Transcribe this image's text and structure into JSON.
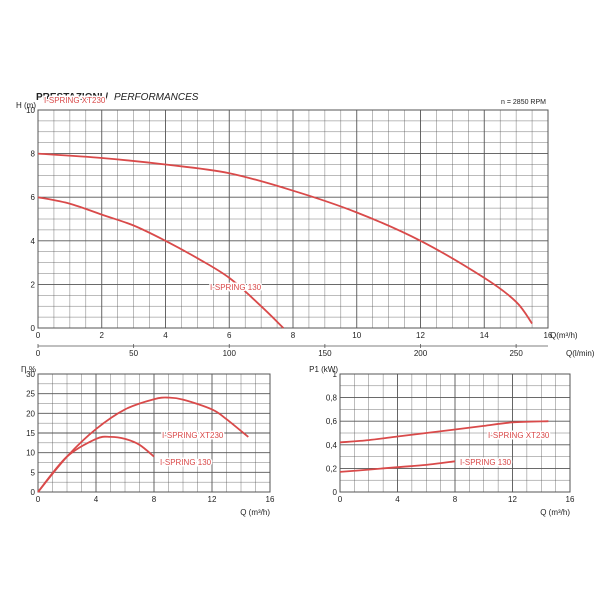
{
  "header": {
    "title_it": "PRESTAZIONI /",
    "title_en": "PERFORMANCES",
    "speed_note": "n = 2850 RPM"
  },
  "colors": {
    "curve": "#d94a4a",
    "grid": "#555555",
    "text": "#222222"
  },
  "chart_data": [
    {
      "type": "line",
      "id": "head",
      "ylabel": "H (m)",
      "xlabel": "Q(m³/h)",
      "xlabel2": "Q(l/min)",
      "xlim": [
        0,
        16
      ],
      "ylim": [
        0,
        10
      ],
      "xticks": [
        "0",
        "2",
        "4",
        "6",
        "8",
        "10",
        "12",
        "14",
        "16"
      ],
      "yticks": [
        "0",
        "2",
        "4",
        "6",
        "8",
        "10"
      ],
      "x2lim": [
        0,
        266.67
      ],
      "x2ticks": [
        "0",
        "50",
        "100",
        "150",
        "200",
        "250"
      ],
      "grid": true,
      "series": [
        {
          "name": "I-SPRING XT230",
          "x": [
            0,
            2,
            4,
            6,
            8,
            10,
            12,
            14,
            15,
            15.5
          ],
          "y": [
            8.0,
            7.8,
            7.5,
            7.1,
            6.3,
            5.3,
            4.0,
            2.3,
            1.2,
            0.2
          ]
        },
        {
          "name": "I-SPRING 130",
          "x": [
            0,
            1,
            2,
            3,
            4,
            5,
            6,
            7,
            7.7
          ],
          "y": [
            6.0,
            5.7,
            5.2,
            4.7,
            4.0,
            3.2,
            2.3,
            1.0,
            0.0
          ]
        }
      ]
    },
    {
      "type": "line",
      "id": "efficiency",
      "ylabel": "Ƞ %",
      "xlabel": "Q (m³/h)",
      "xlim": [
        0,
        16
      ],
      "ylim": [
        0,
        30
      ],
      "xticks": [
        "0",
        "4",
        "8",
        "12",
        "16"
      ],
      "yticks": [
        "0",
        "5",
        "10",
        "15",
        "20",
        "25",
        "30"
      ],
      "grid": true,
      "series": [
        {
          "name": "I-SPRING XT230",
          "x": [
            0,
            2,
            4,
            6,
            8,
            9,
            10,
            12,
            13,
            14.5
          ],
          "y": [
            0,
            9,
            16,
            21,
            23.6,
            24,
            23.5,
            21,
            18.5,
            14
          ]
        },
        {
          "name": "I-SPRING 130",
          "x": [
            0,
            2,
            4,
            5,
            6,
            7,
            8
          ],
          "y": [
            0,
            9,
            13.5,
            14,
            13.5,
            12,
            9
          ]
        }
      ]
    },
    {
      "type": "line",
      "id": "power",
      "ylabel": "P1 (kW)",
      "xlabel": "Q (m³/h)",
      "xlim": [
        0,
        16
      ],
      "ylim": [
        0,
        1.0
      ],
      "xticks": [
        "0",
        "4",
        "8",
        "12",
        "16"
      ],
      "yticks": [
        "0",
        "0,2",
        "0,4",
        "0,6",
        "0,8",
        "1"
      ],
      "grid": true,
      "series": [
        {
          "name": "I-SPRING XT230",
          "x": [
            0,
            2,
            4,
            6,
            8,
            10,
            12,
            14.5
          ],
          "y": [
            0.42,
            0.44,
            0.47,
            0.5,
            0.53,
            0.56,
            0.59,
            0.6
          ]
        },
        {
          "name": "I-SPRING 130",
          "x": [
            0,
            2,
            4,
            6,
            8
          ],
          "y": [
            0.17,
            0.19,
            0.21,
            0.23,
            0.26
          ]
        }
      ]
    }
  ]
}
